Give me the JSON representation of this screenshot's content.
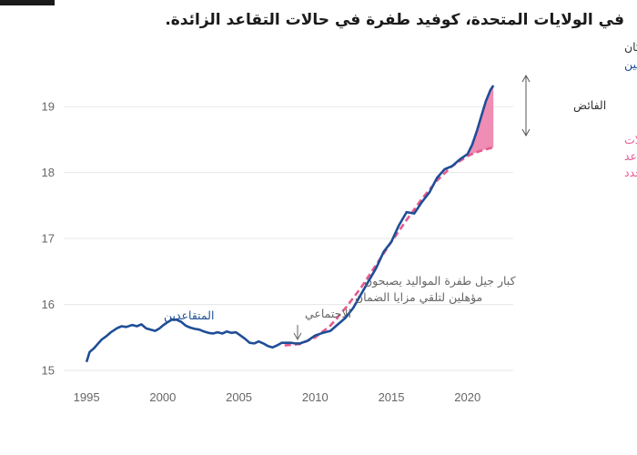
{
  "title": "في الولايات المتحدة،  كوفيد طفرة في حالات التقاعد الزائدة.",
  "colors": {
    "actual": "#1f4e96",
    "expected": "#e8588d",
    "surplus": "#ef8db4",
    "grid": "#e6e6e6",
    "text": "#333333",
    "axis_text": "#666666"
  },
  "chart_data": {
    "type": "line",
    "title": "في الولايات المتحدة،  كوفيد طفرة في حالات التقاعد الزائدة.",
    "ylabel": "% من السكان",
    "xlim": [
      1993.5,
      2023
    ],
    "ylim": [
      14.85,
      19.65
    ],
    "x_ticks": [
      1995,
      2000,
      2005,
      2010,
      2015,
      2020
    ],
    "y_ticks": [
      15,
      16,
      17,
      18,
      19
    ],
    "grid": true,
    "series": [
      {
        "name": "المتقاعدين الفعليين",
        "style": "solid",
        "x": [
          1995.0,
          1995.2,
          1995.5,
          1995.8,
          1996.0,
          1996.3,
          1996.6,
          1997.0,
          1997.3,
          1997.6,
          1998.0,
          1998.3,
          1998.6,
          1998.9,
          1999.2,
          1999.5,
          1999.8,
          2000.0,
          2000.3,
          2000.6,
          2000.9,
          2001.2,
          2001.5,
          2001.8,
          2002.1,
          2002.4,
          2002.7,
          2003.0,
          2003.3,
          2003.6,
          2003.9,
          2004.2,
          2004.5,
          2004.8,
          2005.1,
          2005.4,
          2005.7,
          2006.0,
          2006.3,
          2006.6,
          2006.9,
          2007.2,
          2007.5,
          2007.8,
          2008.1,
          2008.4,
          2008.7,
          2009.0,
          2009.5,
          2010.0,
          2010.5,
          2011.0,
          2011.5,
          2012.0,
          2012.5,
          2013.0,
          2013.5,
          2014.0,
          2014.5,
          2015.0,
          2015.5,
          2016.0,
          2016.5,
          2017.0,
          2017.5,
          2018.0,
          2018.5,
          2019.0,
          2019.5,
          2020.0,
          2020.3,
          2020.6,
          2020.9,
          2021.2,
          2021.5,
          2021.7
        ],
        "y": [
          15.13,
          15.28,
          15.34,
          15.42,
          15.47,
          15.52,
          15.58,
          15.64,
          15.67,
          15.66,
          15.69,
          15.67,
          15.7,
          15.64,
          15.62,
          15.6,
          15.64,
          15.68,
          15.73,
          15.77,
          15.77,
          15.74,
          15.68,
          15.65,
          15.63,
          15.62,
          15.59,
          15.57,
          15.56,
          15.58,
          15.56,
          15.59,
          15.57,
          15.58,
          15.53,
          15.48,
          15.42,
          15.41,
          15.44,
          15.41,
          15.37,
          15.35,
          15.38,
          15.42,
          15.42,
          15.42,
          15.41,
          15.41,
          15.45,
          15.53,
          15.57,
          15.6,
          15.7,
          15.8,
          15.95,
          16.15,
          16.35,
          16.55,
          16.8,
          16.95,
          17.2,
          17.4,
          17.38,
          17.55,
          17.7,
          17.92,
          18.05,
          18.1,
          18.2,
          18.28,
          18.42,
          18.62,
          18.85,
          19.08,
          19.25,
          19.32
        ]
      },
      {
        "name": "توقع حالات التقاعد للمواليد الجدد",
        "style": "dashed",
        "x": [
          2008.0,
          2009.0,
          2010.0,
          2011.0,
          2012.0,
          2013.0,
          2014.0,
          2015.0,
          2016.0,
          2017.0,
          2018.0,
          2019.0,
          2020.0,
          2020.5,
          2021.0,
          2021.5,
          2021.7
        ],
        "y": [
          15.38,
          15.4,
          15.5,
          15.68,
          15.95,
          16.25,
          16.6,
          16.95,
          17.28,
          17.6,
          17.88,
          18.1,
          18.25,
          18.3,
          18.34,
          18.37,
          18.38
        ]
      }
    ],
    "labels": {
      "retirees": "المتقاعدين",
      "actual_retirees": "المتقاعدين الفعليين",
      "surplus": "الفائض",
      "expected_line1": "توقع حالات",
      "expected_line2": "التقاعد",
      "expected_line3": "للمواليد الجدد",
      "boomers_line1": "كبار جيل طفرة المواليد يصبحون",
      "boomers_line2": "مؤهلين لتلقي مزايا الضمان",
      "boomers_line3": "الاجتماعي"
    }
  }
}
